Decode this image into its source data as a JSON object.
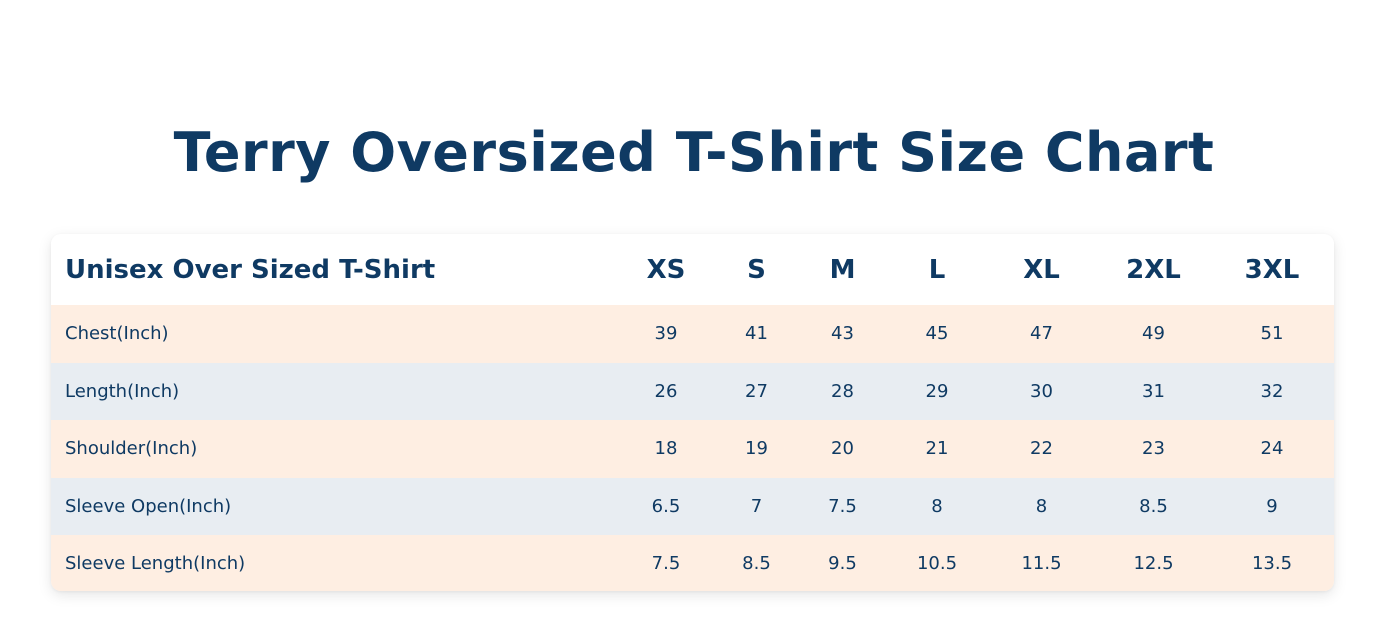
{
  "title": "Terry Oversized T-Shirt Size Chart",
  "table": {
    "header_label": "Unisex Over Sized T-Shirt",
    "sizes": [
      "XS",
      "S",
      "M",
      "L",
      "XL",
      "2XL",
      "3XL"
    ],
    "rows": [
      {
        "label": "Chest(Inch)",
        "values": [
          "39",
          "41",
          "43",
          "45",
          "47",
          "49",
          "51"
        ]
      },
      {
        "label": "Length(Inch)",
        "values": [
          "26",
          "27",
          "28",
          "29",
          "30",
          "31",
          "32"
        ]
      },
      {
        "label": "Shoulder(Inch)",
        "values": [
          "18",
          "19",
          "20",
          "21",
          "22",
          "23",
          "24"
        ]
      },
      {
        "label": "Sleeve Open(Inch)",
        "values": [
          "6.5",
          "7",
          "7.5",
          "8",
          "8",
          "8.5",
          "9"
        ]
      },
      {
        "label": "Sleeve Length(Inch)",
        "values": [
          "7.5",
          "8.5",
          "9.5",
          "10.5",
          "11.5",
          "12.5",
          "13.5"
        ]
      }
    ]
  },
  "colors": {
    "text": "#0f3a63",
    "row_peach": "#feeee2",
    "row_blue": "#e8edf2",
    "background": "#ffffff"
  }
}
